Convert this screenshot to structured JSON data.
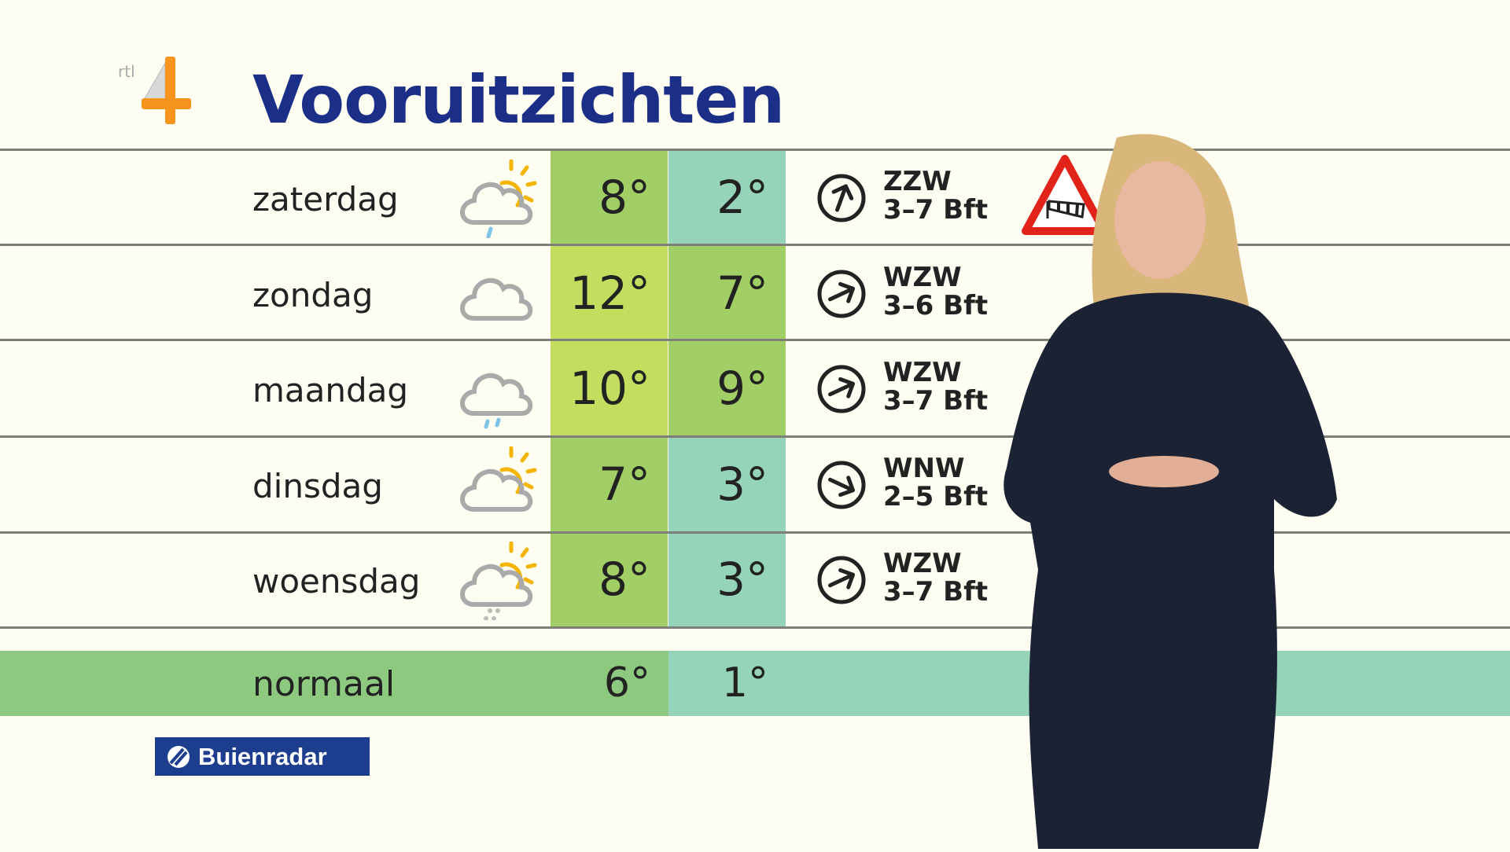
{
  "logo": {
    "channel": "rtl 4",
    "accent": "#f7941d"
  },
  "title": "Vooruitzichten",
  "colors": {
    "title": "#1b2f88",
    "max_green": "#a2cf65",
    "max_lime": "#c3de5e",
    "min_teal": "#95d4b8",
    "normal_green": "#8dca80"
  },
  "forecast": [
    {
      "day": "zaterdag",
      "icon": "sun-cloud-rain-icon",
      "max": "8°",
      "min": "2°",
      "wind_dir": "ZZW",
      "wind_force": "3–7 Bft",
      "arrow_deg": 20,
      "max_color": "#a2cf65",
      "min_color": "#95d4b8"
    },
    {
      "day": "zondag",
      "icon": "cloud-icon",
      "max": "12°",
      "min": "7°",
      "wind_dir": "WZW",
      "wind_force": "3–6 Bft",
      "arrow_deg": 65,
      "max_color": "#c3de5e",
      "min_color": "#a2cf65"
    },
    {
      "day": "maandag",
      "icon": "cloud-rain-icon",
      "max": "10°",
      "min": "9°",
      "wind_dir": "WZW",
      "wind_force": "3–7 Bft",
      "arrow_deg": 65,
      "max_color": "#c3de5e",
      "min_color": "#a2cf65"
    },
    {
      "day": "dinsdag",
      "icon": "sun-cloud-icon",
      "max": "7°",
      "min": "3°",
      "wind_dir": "WNW",
      "wind_force": "2–5 Bft",
      "arrow_deg": 115,
      "max_color": "#a2cf65",
      "min_color": "#95d4b8"
    },
    {
      "day": "woensdag",
      "icon": "sun-cloud-hail-icon",
      "max": "8°",
      "min": "3°",
      "wind_dir": "WZW",
      "wind_force": "3–7 Bft",
      "arrow_deg": 65,
      "max_color": "#a2cf65",
      "min_color": "#95d4b8"
    }
  ],
  "warning": {
    "icon": "wind-warning-icon"
  },
  "normal": {
    "label": "normaal",
    "max": "6°",
    "min": "1°"
  },
  "brand": "Buienradar"
}
